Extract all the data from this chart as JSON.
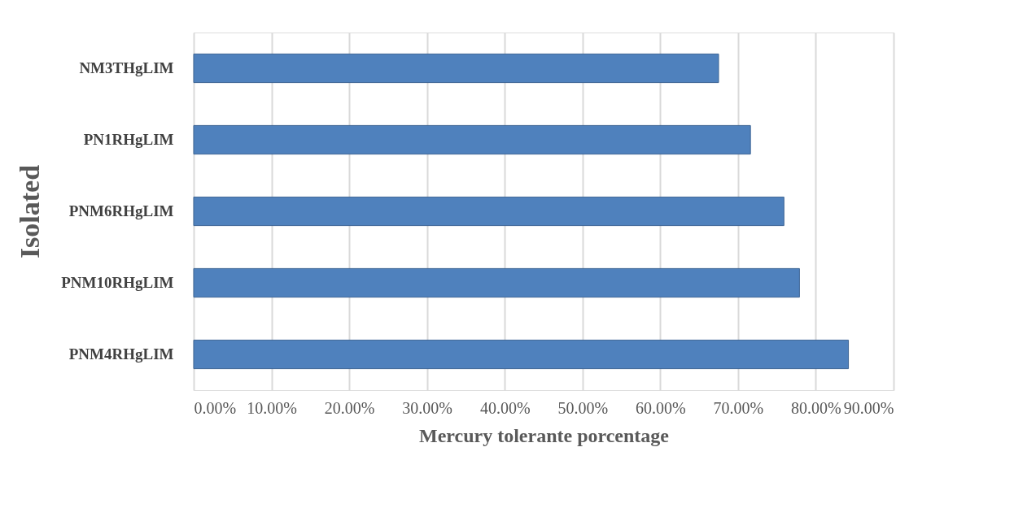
{
  "chart_data": {
    "type": "bar",
    "orientation": "horizontal",
    "xlabel": "Mercury tolerante porcentage",
    "ylabel": "Isolated",
    "categories": [
      "NM3THgLIM",
      "PN1RHgLIM",
      "PNM6RHgLIM",
      "PNM10RHgLIM",
      "PNM4RHgLIM"
    ],
    "values": [
      67.5,
      71.6,
      75.9,
      77.9,
      84.2
    ],
    "color": "#4f81bd",
    "xlim": [
      0,
      90
    ],
    "xticks": [
      {
        "value": 0,
        "label": "0.00%"
      },
      {
        "value": 10,
        "label": "10.00%"
      },
      {
        "value": 20,
        "label": "20.00%"
      },
      {
        "value": 30,
        "label": "30.00%"
      },
      {
        "value": 40,
        "label": "40.00%"
      },
      {
        "value": 50,
        "label": "50.00%"
      },
      {
        "value": 60,
        "label": "60.00%"
      },
      {
        "value": 70,
        "label": "70.00%"
      },
      {
        "value": 80,
        "label": "80.00%"
      },
      {
        "value": 90,
        "label": "90.00%"
      }
    ],
    "grid": "x"
  }
}
